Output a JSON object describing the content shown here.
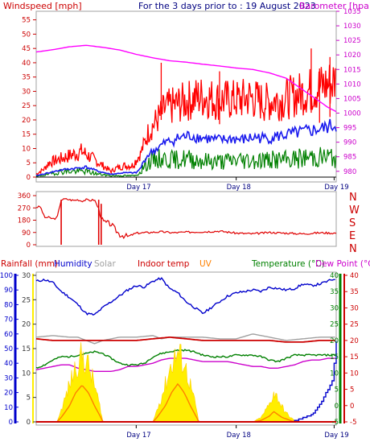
{
  "colors": {
    "wind": "#e00000",
    "gust_bar": "#ff0000",
    "avg_wind": "#1a1aee",
    "low_wind": "#008000",
    "baro": "#ff00ff",
    "rain": "#0000cc",
    "humidity": "#0000cc",
    "solar": "#a0a0a0",
    "indoor": "#cc0000",
    "uv": "#ff8000",
    "temp": "#008000",
    "dew": "#cc00cc",
    "solar_fill": "#ffee00",
    "frame": "#a0a0a0",
    "frame_dark": "#000000"
  },
  "chart_data": [
    {
      "type": "line",
      "panel": "wind_baro",
      "title": "For the 3 days prior to : 19 August 2023",
      "left_label": "Windspeed [mph]",
      "right_label": "Barometer [hpa]",
      "y_left_ticks": [
        0,
        5,
        10,
        15,
        20,
        25,
        30,
        35,
        40,
        45,
        50,
        55
      ],
      "y_right_ticks": [
        980,
        985,
        990,
        995,
        1000,
        1005,
        1010,
        1015,
        1020,
        1025,
        1030,
        1035
      ],
      "ylim_left": [
        0,
        58
      ],
      "ylim_right": [
        978,
        1035
      ],
      "x_ticks": [
        "Day 17",
        "Day 18",
        "Day 19"
      ],
      "xlim_hours": [
        0,
        72
      ],
      "series": [
        {
          "key": "baro",
          "axis": "right",
          "color_key": "baro",
          "x": [
            0,
            4,
            8,
            12,
            16,
            20,
            24,
            28,
            32,
            36,
            40,
            44,
            48,
            52,
            56,
            60,
            62,
            64,
            66,
            68,
            70,
            72
          ],
          "y": [
            1021,
            1021.8,
            1022.8,
            1023.3,
            1022.6,
            1021.7,
            1020.2,
            1019,
            1018,
            1017.5,
            1016.8,
            1016.2,
            1015.5,
            1015,
            1013.8,
            1012,
            1010,
            1008,
            1006,
            1004,
            1002,
            1000.5
          ]
        },
        {
          "key": "gust",
          "axis": "left",
          "color_key": "wind",
          "x": [
            0,
            2,
            3,
            5,
            7,
            9,
            11,
            13,
            15,
            17,
            18,
            19,
            21,
            23,
            25,
            26,
            27,
            29,
            31,
            33,
            35,
            37,
            39,
            41,
            43,
            45,
            47,
            49,
            51,
            53,
            55,
            57,
            59,
            61,
            63,
            65,
            67,
            69,
            71,
            72
          ],
          "y": [
            1,
            3,
            5,
            6,
            7,
            8,
            9,
            7,
            5,
            3,
            2,
            3,
            4,
            4,
            8,
            12,
            16,
            20,
            24,
            25,
            26,
            27,
            28,
            28,
            27,
            27,
            27,
            27,
            28,
            27,
            26,
            27,
            27,
            28,
            29,
            30,
            31,
            32,
            33,
            34
          ]
        },
        {
          "key": "avg",
          "axis": "left",
          "color_key": "avg_wind",
          "x": [
            0,
            3,
            6,
            9,
            12,
            15,
            18,
            21,
            24,
            25,
            26,
            27,
            29,
            31,
            33,
            35,
            37,
            39,
            41,
            43,
            45,
            47,
            49,
            51,
            53,
            55,
            57,
            59,
            61,
            63,
            65,
            67,
            69,
            71,
            72
          ],
          "y": [
            0.5,
            1.5,
            2.5,
            3,
            3.5,
            2,
            1,
            1.5,
            1.5,
            3,
            6,
            8,
            10,
            12,
            13,
            14,
            14.5,
            14,
            13.5,
            13,
            13,
            13.5,
            13,
            13.5,
            14,
            13.5,
            14,
            14.5,
            15,
            15.5,
            16,
            16.5,
            17,
            18,
            18
          ]
        },
        {
          "key": "low",
          "axis": "left",
          "color_key": "low_wind",
          "x": [
            0,
            3,
            6,
            9,
            12,
            15,
            18,
            21,
            24,
            25,
            26,
            28,
            30,
            33,
            36,
            39,
            42,
            45,
            48,
            51,
            54,
            57,
            60,
            63,
            66,
            69,
            72
          ],
          "y": [
            0.2,
            1,
            2,
            2,
            2,
            1,
            0.5,
            0.5,
            0.5,
            2,
            4,
            6,
            6.5,
            6,
            6.5,
            6,
            5.5,
            5.5,
            6,
            6,
            6,
            6,
            6,
            6.5,
            7,
            7,
            7
          ]
        }
      ]
    },
    {
      "type": "scatter",
      "panel": "direction",
      "y_left_ticks": [
        0,
        90,
        180,
        270,
        360
      ],
      "ylim": [
        0,
        360
      ],
      "compass_labels": [
        "N",
        "W",
        "S",
        "E",
        "N"
      ],
      "x_ticks": [],
      "series": [
        {
          "key": "dir",
          "color_key": "wind",
          "x": [
            0,
            1,
            2,
            3,
            4,
            5,
            6,
            7,
            8,
            9,
            10,
            11,
            12,
            13,
            14,
            15,
            16,
            17,
            18,
            19,
            20,
            22,
            24,
            27,
            30,
            33,
            36,
            40,
            44,
            48,
            52,
            56,
            60,
            64,
            68,
            72
          ],
          "y": [
            275,
            280,
            200,
            200,
            190,
            195,
            330,
            335,
            330,
            325,
            330,
            320,
            330,
            325,
            330,
            260,
            170,
            160,
            150,
            110,
            75,
            60,
            85,
            90,
            95,
            88,
            92,
            95,
            100,
            85,
            80,
            90,
            85,
            80,
            88,
            85
          ]
        }
      ]
    },
    {
      "type": "line",
      "panel": "rain_temp",
      "labels": {
        "rain": "Rainfall (mm)",
        "humidity": "Humidity",
        "solar": "Solar",
        "indoor": "Indoor temp",
        "uv": "UV",
        "temp": "Temperature (°C)",
        "dew": "Dew Point (°C)"
      },
      "y_rain_ticks": [
        0,
        10,
        20,
        30,
        40,
        50,
        60,
        70,
        80,
        90,
        100
      ],
      "ylim_rain": [
        0,
        100
      ],
      "y_left2_ticks": [
        0,
        5,
        10,
        15,
        20,
        25,
        30
      ],
      "ylim_left2": [
        0,
        30
      ],
      "y_temp_ticks": [
        -5,
        0,
        5,
        10,
        15,
        20,
        25,
        30,
        35,
        40
      ],
      "ylim_temp": [
        -5,
        40
      ],
      "x_ticks": [
        "Day 17",
        "Day 18",
        "Day 19"
      ],
      "xlim_hours": [
        0,
        72
      ],
      "series": [
        {
          "key": "humidity",
          "axis": "rain",
          "color_key": "humidity",
          "x": [
            0,
            2,
            4,
            6,
            8,
            10,
            12,
            14,
            16,
            18,
            20,
            22,
            24,
            26,
            28,
            30,
            32,
            34,
            36,
            38,
            40,
            42,
            44,
            46,
            48,
            50,
            52,
            54,
            56,
            58,
            60,
            62,
            64,
            66,
            68,
            70,
            72
          ],
          "y": [
            96,
            97,
            95,
            89,
            85,
            80,
            74,
            73,
            78,
            82,
            86,
            90,
            93,
            92,
            96,
            98,
            91,
            88,
            82,
            78,
            74,
            78,
            82,
            86,
            88,
            89,
            90,
            89,
            92,
            91,
            90,
            91,
            94,
            93,
            94,
            96,
            98
          ]
        },
        {
          "key": "solar_line",
          "axis": "temp",
          "color_key": "solar",
          "x": [
            0,
            4,
            8,
            10,
            12,
            14,
            16,
            20,
            24,
            28,
            30,
            32,
            36,
            40,
            44,
            48,
            52,
            56,
            60,
            64,
            68,
            72
          ],
          "y": [
            21,
            21.5,
            21,
            21,
            20,
            19,
            20,
            21,
            21,
            21.5,
            20.5,
            21,
            21,
            21,
            20.5,
            20.5,
            22,
            21,
            20,
            20.5,
            21,
            21
          ]
        },
        {
          "key": "indoor",
          "axis": "temp",
          "color_key": "indoor",
          "x": [
            0,
            4,
            8,
            12,
            16,
            20,
            24,
            28,
            32,
            36,
            40,
            44,
            48,
            52,
            56,
            60,
            64,
            68,
            72
          ],
          "y": [
            20.5,
            20,
            20,
            20,
            20,
            20,
            20,
            20.5,
            21,
            20.5,
            20,
            20,
            20,
            20,
            20,
            19.5,
            19.5,
            20,
            20
          ]
        },
        {
          "key": "temp",
          "axis": "temp",
          "color_key": "temp",
          "x": [
            0,
            1,
            2,
            4,
            6,
            8,
            10,
            12,
            14,
            16,
            18,
            20,
            22,
            24,
            26,
            28,
            30,
            32,
            34,
            36,
            38,
            40,
            42,
            44,
            46,
            48,
            50,
            52,
            54,
            56,
            58,
            60,
            62,
            64,
            66,
            68,
            70,
            72
          ],
          "y": [
            11.5,
            12,
            12.5,
            14,
            15,
            15,
            15.5,
            16,
            16.5,
            16,
            14.5,
            13,
            12.5,
            12.5,
            13,
            15,
            16,
            16.5,
            17,
            17,
            16.5,
            15.5,
            15,
            15,
            15,
            15.5,
            15.5,
            15.5,
            15,
            14,
            13.5,
            14.5,
            15.5,
            15.5,
            15.5,
            15.5,
            15.5,
            15.5
          ]
        },
        {
          "key": "dew",
          "axis": "temp",
          "color_key": "dew",
          "x": [
            0,
            2,
            4,
            6,
            8,
            10,
            12,
            14,
            16,
            18,
            20,
            22,
            24,
            26,
            28,
            30,
            32,
            34,
            36,
            38,
            40,
            42,
            44,
            46,
            48,
            50,
            52,
            54,
            56,
            58,
            60,
            62,
            64,
            66,
            68,
            70,
            72
          ],
          "y": [
            11,
            11.5,
            12,
            12.5,
            12.5,
            11.5,
            11,
            10.5,
            10.5,
            10.5,
            11,
            12,
            12,
            12.5,
            13,
            14,
            14.5,
            14.5,
            14.5,
            14,
            13.5,
            13.5,
            13.5,
            13.5,
            13,
            12.5,
            12,
            12,
            11.5,
            11.5,
            12,
            12.5,
            13.5,
            14,
            14,
            14.5,
            14.5
          ]
        },
        {
          "key": "solar",
          "axis": "rain",
          "color_key": "solar_fill",
          "fill": true,
          "x": [
            0,
            5,
            6,
            8,
            9.5,
            11,
            12.5,
            14,
            15.5,
            16,
            24,
            28,
            29,
            31,
            32.5,
            34,
            35.5,
            37,
            38.5,
            39,
            48,
            52,
            54,
            56,
            57,
            58,
            59,
            60,
            61,
            62,
            63,
            72
          ],
          "y": [
            0,
            0,
            8,
            25,
            38,
            45,
            38,
            25,
            8,
            0,
            0,
            0,
            8,
            25,
            40,
            47,
            40,
            25,
            8,
            0,
            0,
            0,
            3,
            12,
            20,
            16,
            10,
            6,
            3,
            1,
            0,
            0
          ]
        },
        {
          "key": "uv",
          "axis": "rain",
          "color_key": "uv",
          "x": [
            0,
            5,
            6,
            8,
            9.5,
            11,
            12.5,
            14,
            15.5,
            16,
            24,
            28,
            29,
            31,
            32.5,
            34,
            35.5,
            37,
            38.5,
            39,
            48,
            52,
            54,
            56,
            57,
            58,
            59,
            60,
            61,
            62,
            63,
            72
          ],
          "y": [
            0,
            0,
            3,
            11,
            20,
            25,
            20,
            11,
            3,
            0,
            0,
            0,
            3,
            11,
            20,
            26,
            20,
            11,
            3,
            0,
            0,
            0,
            1,
            4,
            7,
            5,
            3,
            2,
            1,
            0,
            0,
            0
          ]
        },
        {
          "key": "rain",
          "axis": "rain",
          "color_key": "rain",
          "step": true,
          "x": [
            0,
            56,
            60,
            62,
            63,
            64,
            64.5,
            65,
            65.5,
            66,
            66.5,
            67,
            67.5,
            68,
            68.5,
            69,
            69.5,
            70,
            70.5,
            71,
            71.5,
            72
          ],
          "y": [
            0,
            0,
            0,
            1,
            2,
            3,
            3,
            4,
            4,
            5,
            6,
            8,
            10,
            12,
            14,
            17,
            20,
            22,
            25,
            28,
            40,
            55
          ]
        }
      ]
    }
  ]
}
